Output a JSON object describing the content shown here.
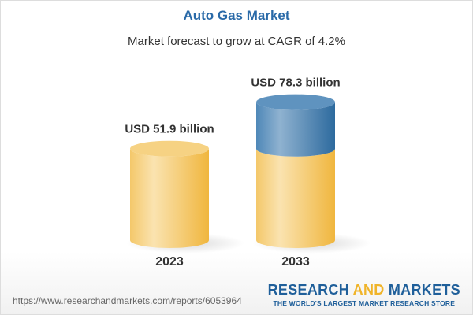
{
  "header": {
    "title": "Auto Gas Market",
    "subtitle": "Market forecast to grow at CAGR of 4.2%"
  },
  "chart_data": {
    "type": "bar",
    "style": "3d-cylinder",
    "categories": [
      "2023",
      "2033"
    ],
    "values": [
      51.9,
      78.3
    ],
    "unit": "USD billion",
    "data_labels": [
      "USD 51.9 billion",
      "USD 78.3 billion"
    ],
    "cagr": "4.2%",
    "colors": {
      "base": "#f2c15a",
      "growth": "#4a84b5"
    }
  },
  "footer": {
    "url": "https://www.researchandmarkets.com/reports/6053964",
    "logo_research": "RESEARCH",
    "logo_and": "AND",
    "logo_markets": "MARKETS",
    "logo_tagline": "THE WORLD'S LARGEST MARKET RESEARCH STORE"
  }
}
